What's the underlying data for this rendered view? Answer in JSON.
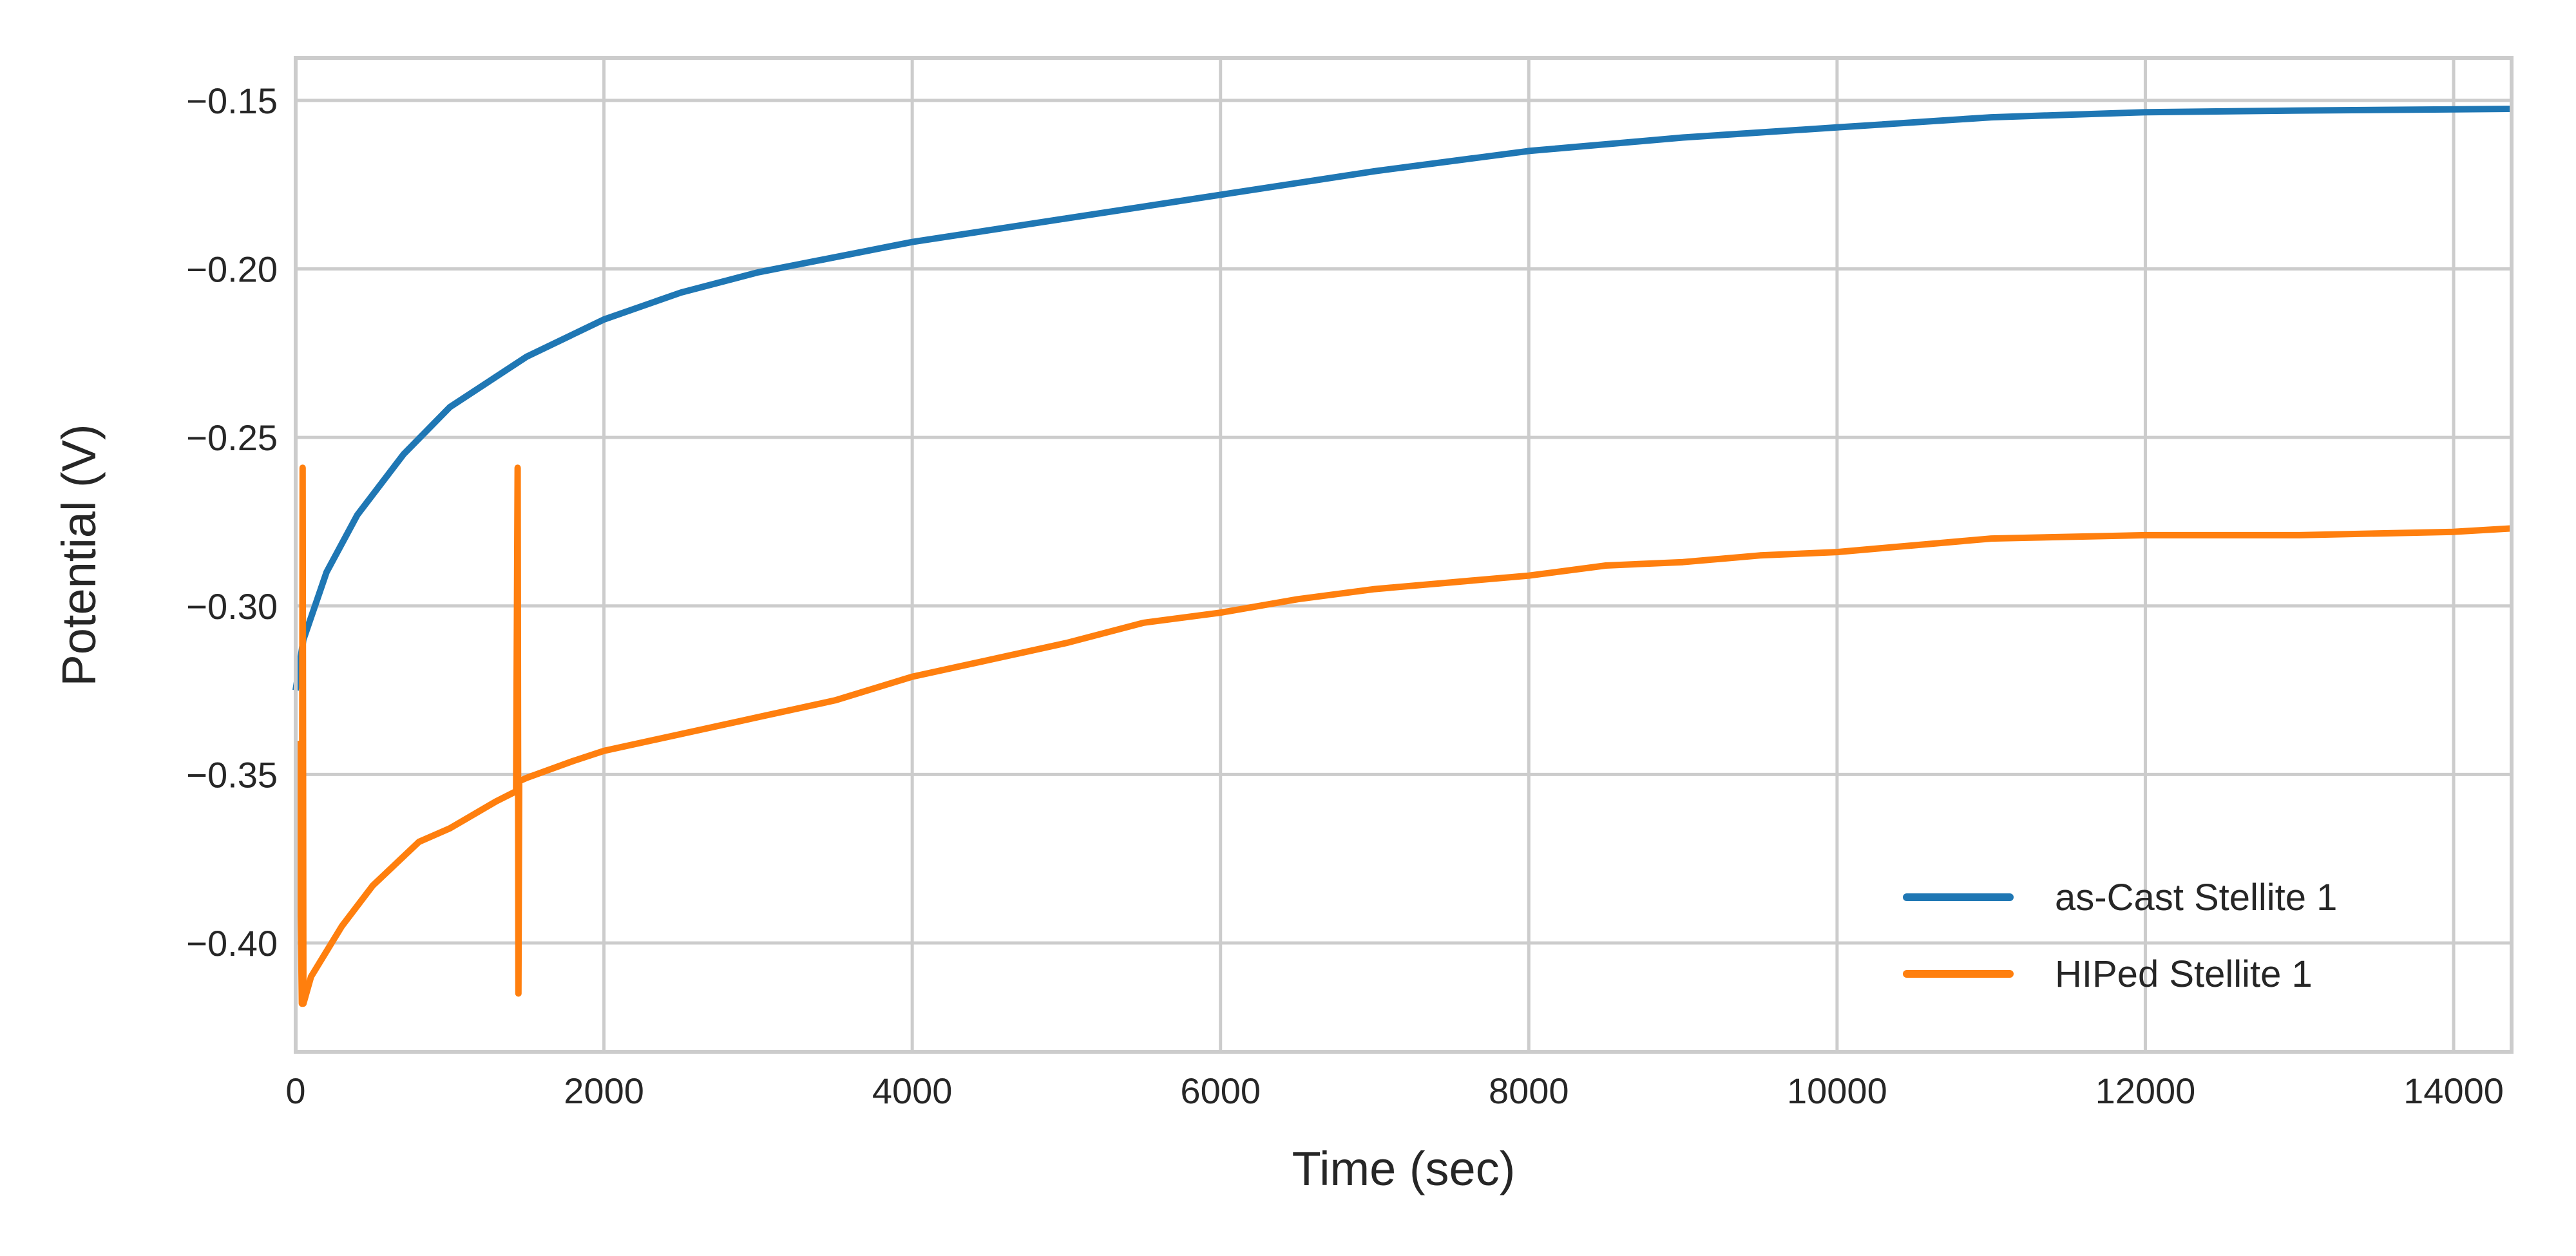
{
  "chart_data": {
    "type": "line",
    "title": "",
    "xlabel": "Time (sec)",
    "ylabel": "Potential (V)",
    "xlim": [
      0,
      14376
    ],
    "ylim": [
      -0.4323,
      -0.1374
    ],
    "grid": true,
    "legend_position": "lower-right",
    "xticks": [
      0,
      2000,
      4000,
      6000,
      8000,
      10000,
      12000,
      14000
    ],
    "xtick_labels": [
      "0",
      "2000",
      "4000",
      "6000",
      "8000",
      "10000",
      "12000",
      "14000"
    ],
    "yticks": [
      -0.15,
      -0.2,
      -0.25,
      -0.3,
      -0.35,
      -0.4
    ],
    "ytick_labels": [
      "−0.15",
      "−0.20",
      "−0.25",
      "−0.30",
      "−0.35",
      "−0.40"
    ],
    "series": [
      {
        "name": "as-Cast Stellite 1",
        "color": "#1f77b4",
        "x": [
          0,
          50,
          200,
          400,
          700,
          1000,
          1500,
          2000,
          2500,
          3000,
          4000,
          5000,
          6000,
          7000,
          8000,
          9000,
          10000,
          11000,
          12000,
          13000,
          14376
        ],
        "y": [
          -0.325,
          -0.31,
          -0.29,
          -0.273,
          -0.255,
          -0.241,
          -0.226,
          -0.215,
          -0.207,
          -0.201,
          -0.192,
          -0.185,
          -0.178,
          -0.171,
          -0.165,
          -0.161,
          -0.158,
          -0.155,
          -0.1535,
          -0.153,
          -0.1525
        ]
      },
      {
        "name": "HIPed Stellite 1",
        "color": "#ff7f0e",
        "x": [
          20,
          40,
          45,
          50,
          100,
          300,
          500,
          800,
          1000,
          1300,
          1430,
          1440,
          1445,
          1450,
          1500,
          1800,
          2000,
          2500,
          3000,
          3500,
          4000,
          4500,
          5000,
          5500,
          6000,
          6500,
          7000,
          7500,
          8000,
          8500,
          9000,
          9500,
          10000,
          10500,
          11000,
          12000,
          13000,
          14000,
          14376
        ],
        "y": [
          -0.34,
          -0.418,
          -0.259,
          -0.418,
          -0.41,
          -0.395,
          -0.383,
          -0.37,
          -0.366,
          -0.358,
          -0.355,
          -0.259,
          -0.415,
          -0.352,
          -0.351,
          -0.346,
          -0.343,
          -0.338,
          -0.333,
          -0.328,
          -0.321,
          -0.316,
          -0.311,
          -0.305,
          -0.302,
          -0.298,
          -0.295,
          -0.293,
          -0.291,
          -0.288,
          -0.287,
          -0.285,
          -0.284,
          -0.282,
          -0.28,
          -0.279,
          -0.279,
          -0.278,
          -0.277
        ]
      }
    ]
  }
}
